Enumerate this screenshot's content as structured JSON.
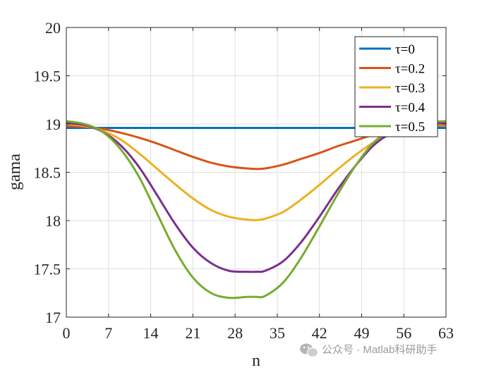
{
  "chart_data": {
    "type": "line",
    "xlabel": "n",
    "ylabel": "gama",
    "xlim": [
      0,
      63
    ],
    "ylim": [
      17,
      20
    ],
    "xticks": [
      0,
      7,
      14,
      21,
      28,
      35,
      42,
      49,
      56,
      63
    ],
    "yticks": [
      17,
      17.5,
      18,
      18.5,
      19,
      19.5,
      20
    ],
    "grid": true,
    "legend_position": "top-right",
    "x": [
      0,
      3,
      6,
      9,
      12,
      15,
      18,
      21,
      24,
      27,
      30,
      31.5,
      33,
      36,
      39,
      42,
      45,
      48,
      51,
      54,
      57,
      60,
      63
    ],
    "series": [
      {
        "name": "τ=0",
        "color": "#0072BD",
        "values": [
          18.96,
          18.96,
          18.96,
          18.96,
          18.96,
          18.96,
          18.96,
          18.96,
          18.96,
          18.96,
          18.96,
          18.96,
          18.96,
          18.96,
          18.96,
          18.96,
          18.96,
          18.96,
          18.96,
          18.96,
          18.96,
          18.96,
          18.96
        ]
      },
      {
        "name": "τ=0.2",
        "color": "#D95319",
        "values": [
          18.98,
          18.97,
          18.95,
          18.91,
          18.86,
          18.8,
          18.73,
          18.66,
          18.6,
          18.56,
          18.54,
          18.535,
          18.54,
          18.58,
          18.64,
          18.7,
          18.77,
          18.83,
          18.89,
          18.93,
          18.96,
          18.98,
          18.985
        ]
      },
      {
        "name": "τ=0.3",
        "color": "#EDB120",
        "values": [
          19.0,
          18.98,
          18.93,
          18.84,
          18.7,
          18.54,
          18.38,
          18.23,
          18.11,
          18.04,
          18.01,
          18.005,
          18.02,
          18.09,
          18.22,
          18.37,
          18.53,
          18.68,
          18.81,
          18.9,
          18.96,
          18.99,
          19.0
        ]
      },
      {
        "name": "τ=0.4",
        "color": "#7E2F8E",
        "values": [
          19.01,
          18.99,
          18.92,
          18.78,
          18.56,
          18.27,
          17.97,
          17.72,
          17.56,
          17.48,
          17.47,
          17.47,
          17.48,
          17.58,
          17.78,
          18.04,
          18.32,
          18.57,
          18.78,
          18.91,
          18.98,
          19.0,
          19.01
        ]
      },
      {
        "name": "τ=0.5",
        "color": "#77AC30",
        "values": [
          19.03,
          19.0,
          18.92,
          18.74,
          18.46,
          18.08,
          17.7,
          17.41,
          17.25,
          17.2,
          17.21,
          17.21,
          17.22,
          17.36,
          17.62,
          17.94,
          18.27,
          18.57,
          18.81,
          18.94,
          19.0,
          19.02,
          19.03
        ]
      }
    ]
  },
  "watermark": {
    "text": "公众号 · Matlab科研助手",
    "icon": "wechat-icon"
  }
}
